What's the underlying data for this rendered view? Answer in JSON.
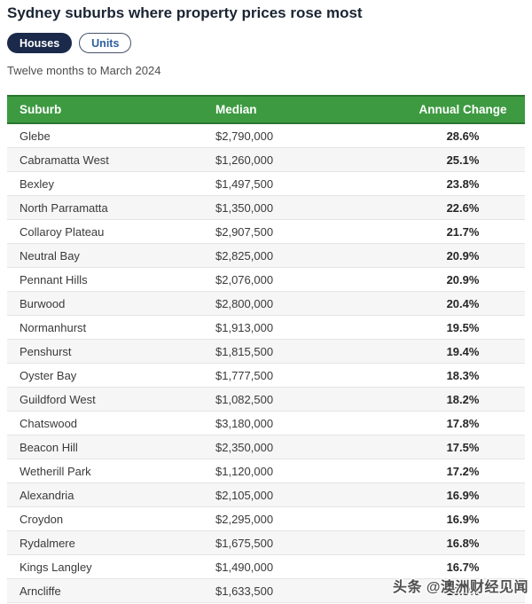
{
  "page": {
    "title": "Sydney suburbs where property prices rose most",
    "subtitle": "Twelve months to March 2024"
  },
  "toggles": {
    "houses_label": "Houses",
    "units_label": "Units",
    "selected": "Houses"
  },
  "watermark": "头条 @澳洲财经见闻",
  "colors": {
    "header_green": "#3d9a41",
    "header_green_border": "#2a752e",
    "active_pill_navy": "#1b2a4a",
    "inactive_pill_blue": "#2d5f9e",
    "row_alt": "#f6f6f6"
  },
  "chart_data": {
    "type": "table",
    "title": "Sydney suburbs where property prices rose most",
    "subtitle": "Twelve months to March 2024",
    "columns": [
      "Suburb",
      "Median",
      "Annual Change"
    ],
    "rows": [
      [
        "Glebe",
        "$2,790,000",
        "28.6%"
      ],
      [
        "Cabramatta West",
        "$1,260,000",
        "25.1%"
      ],
      [
        "Bexley",
        "$1,497,500",
        "23.8%"
      ],
      [
        "North Parramatta",
        "$1,350,000",
        "22.6%"
      ],
      [
        "Collaroy Plateau",
        "$2,907,500",
        "21.7%"
      ],
      [
        "Neutral Bay",
        "$2,825,000",
        "20.9%"
      ],
      [
        "Pennant Hills",
        "$2,076,000",
        "20.9%"
      ],
      [
        "Burwood",
        "$2,800,000",
        "20.4%"
      ],
      [
        "Normanhurst",
        "$1,913,000",
        "19.5%"
      ],
      [
        "Penshurst",
        "$1,815,500",
        "19.4%"
      ],
      [
        "Oyster Bay",
        "$1,777,500",
        "18.3%"
      ],
      [
        "Guildford West",
        "$1,082,500",
        "18.2%"
      ],
      [
        "Chatswood",
        "$3,180,000",
        "17.8%"
      ],
      [
        "Beacon Hill",
        "$2,350,000",
        "17.5%"
      ],
      [
        "Wetherill Park",
        "$1,120,000",
        "17.2%"
      ],
      [
        "Alexandria",
        "$2,105,000",
        "16.9%"
      ],
      [
        "Croydon",
        "$2,295,000",
        "16.9%"
      ],
      [
        "Rydalmere",
        "$1,675,500",
        "16.8%"
      ],
      [
        "Kings Langley",
        "$1,490,000",
        "16.7%"
      ],
      [
        "Arncliffe",
        "$1,633,500",
        "16.3%"
      ]
    ]
  }
}
